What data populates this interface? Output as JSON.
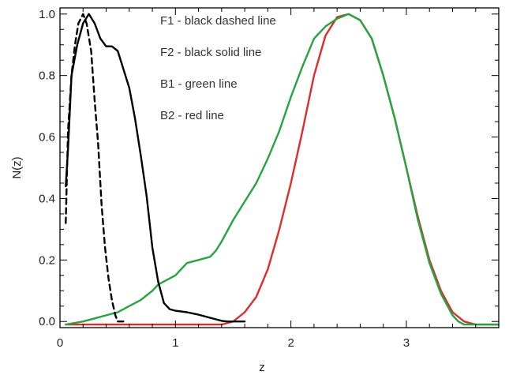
{
  "chart_data": {
    "type": "line",
    "xlabel": "z",
    "ylabel": "N(z)",
    "xlim": [
      0,
      3.8
    ],
    "ylim": [
      -0.02,
      1.02
    ],
    "x_ticks": [
      {
        "value": 0,
        "label": "0"
      },
      {
        "value": 1,
        "label": "1"
      },
      {
        "value": 2,
        "label": "2"
      },
      {
        "value": 3,
        "label": "3"
      }
    ],
    "y_ticks": [
      {
        "value": 0.0,
        "label": "0.0"
      },
      {
        "value": 0.2,
        "label": "0.2"
      },
      {
        "value": 0.4,
        "label": "0.4"
      },
      {
        "value": 0.6,
        "label": "0.6"
      },
      {
        "value": 0.8,
        "label": "0.8"
      },
      {
        "value": 1.0,
        "label": "1.0"
      }
    ],
    "legend_placement": "top-center",
    "annotations": [
      "F1 - black dashed line",
      "F2 - black solid line",
      "B1 - green line",
      "B2 - red line"
    ],
    "series": [
      {
        "key": "F1",
        "color": "#000000",
        "style": "dashed",
        "points": [
          [
            0.05,
            0.32
          ],
          [
            0.07,
            0.62
          ],
          [
            0.1,
            0.8
          ],
          [
            0.13,
            0.9
          ],
          [
            0.16,
            0.97
          ],
          [
            0.2,
            1.0
          ],
          [
            0.23,
            0.97
          ],
          [
            0.27,
            0.88
          ],
          [
            0.3,
            0.72
          ],
          [
            0.33,
            0.58
          ],
          [
            0.36,
            0.38
          ],
          [
            0.39,
            0.24
          ],
          [
            0.42,
            0.14
          ],
          [
            0.45,
            0.07
          ],
          [
            0.48,
            0.02
          ],
          [
            0.5,
            0.0
          ],
          [
            0.55,
            0.0
          ]
        ]
      },
      {
        "key": "F2",
        "color": "#000000",
        "style": "solid",
        "points": [
          [
            0.05,
            0.44
          ],
          [
            0.07,
            0.56
          ],
          [
            0.1,
            0.8
          ],
          [
            0.15,
            0.9
          ],
          [
            0.2,
            0.97
          ],
          [
            0.25,
            1.0
          ],
          [
            0.3,
            0.97
          ],
          [
            0.35,
            0.92
          ],
          [
            0.4,
            0.895
          ],
          [
            0.45,
            0.895
          ],
          [
            0.5,
            0.88
          ],
          [
            0.55,
            0.82
          ],
          [
            0.6,
            0.76
          ],
          [
            0.65,
            0.66
          ],
          [
            0.7,
            0.54
          ],
          [
            0.75,
            0.41
          ],
          [
            0.8,
            0.24
          ],
          [
            0.85,
            0.13
          ],
          [
            0.9,
            0.06
          ],
          [
            0.95,
            0.04
          ],
          [
            1.0,
            0.035
          ],
          [
            1.1,
            0.03
          ],
          [
            1.2,
            0.022
          ],
          [
            1.3,
            0.012
          ],
          [
            1.4,
            0.002
          ],
          [
            1.45,
            0.0
          ],
          [
            1.6,
            0.0
          ]
        ]
      },
      {
        "key": "B1",
        "color": "#22a63e",
        "style": "solid",
        "points": [
          [
            0.05,
            -0.01
          ],
          [
            0.2,
            0.0
          ],
          [
            0.3,
            0.01
          ],
          [
            0.4,
            0.02
          ],
          [
            0.5,
            0.03
          ],
          [
            0.6,
            0.05
          ],
          [
            0.7,
            0.07
          ],
          [
            0.8,
            0.1
          ],
          [
            0.85,
            0.12
          ],
          [
            0.9,
            0.13
          ],
          [
            1.0,
            0.15
          ],
          [
            1.1,
            0.19
          ],
          [
            1.2,
            0.2
          ],
          [
            1.3,
            0.21
          ],
          [
            1.35,
            0.23
          ],
          [
            1.4,
            0.26
          ],
          [
            1.5,
            0.33
          ],
          [
            1.6,
            0.39
          ],
          [
            1.7,
            0.45
          ],
          [
            1.8,
            0.53
          ],
          [
            1.9,
            0.62
          ],
          [
            2.0,
            0.73
          ],
          [
            2.1,
            0.83
          ],
          [
            2.2,
            0.92
          ],
          [
            2.3,
            0.96
          ],
          [
            2.4,
            0.985
          ],
          [
            2.5,
            1.0
          ],
          [
            2.6,
            0.98
          ],
          [
            2.7,
            0.92
          ],
          [
            2.8,
            0.8
          ],
          [
            2.9,
            0.66
          ],
          [
            3.0,
            0.5
          ],
          [
            3.1,
            0.33
          ],
          [
            3.2,
            0.19
          ],
          [
            3.3,
            0.09
          ],
          [
            3.4,
            0.02
          ],
          [
            3.45,
            0.0
          ],
          [
            3.5,
            -0.01
          ],
          [
            3.6,
            -0.01
          ],
          [
            3.8,
            -0.01
          ]
        ]
      },
      {
        "key": "B2",
        "color": "#e02b2b",
        "style": "solid",
        "points": [
          [
            0.05,
            -0.01
          ],
          [
            0.5,
            -0.01
          ],
          [
            1.0,
            -0.01
          ],
          [
            1.4,
            -0.01
          ],
          [
            1.5,
            0.0
          ],
          [
            1.6,
            0.03
          ],
          [
            1.7,
            0.08
          ],
          [
            1.8,
            0.17
          ],
          [
            1.9,
            0.3
          ],
          [
            2.0,
            0.45
          ],
          [
            2.1,
            0.62
          ],
          [
            2.2,
            0.8
          ],
          [
            2.3,
            0.93
          ],
          [
            2.4,
            0.99
          ],
          [
            2.5,
            1.0
          ],
          [
            2.6,
            0.98
          ],
          [
            2.7,
            0.92
          ],
          [
            2.8,
            0.8
          ],
          [
            2.9,
            0.66
          ],
          [
            3.0,
            0.5
          ],
          [
            3.1,
            0.34
          ],
          [
            3.2,
            0.2
          ],
          [
            3.3,
            0.1
          ],
          [
            3.4,
            0.03
          ],
          [
            3.5,
            0.0
          ],
          [
            3.6,
            -0.01
          ],
          [
            3.8,
            -0.01
          ]
        ]
      }
    ]
  }
}
